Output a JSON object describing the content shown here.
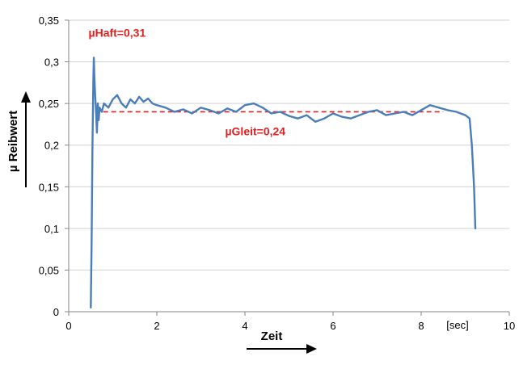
{
  "chart_data": {
    "type": "line",
    "title": "",
    "xlabel": "Zeit",
    "ylabel": "µ Reibwert",
    "x_unit_label": "[sec]",
    "xlim": [
      0,
      10
    ],
    "ylim": [
      0,
      0.35
    ],
    "x_ticks": [
      0,
      2,
      4,
      6,
      8,
      10
    ],
    "x_tick_labels": [
      "0",
      "2",
      "4",
      "6",
      "8",
      "10"
    ],
    "y_ticks": [
      0,
      0.05,
      0.1,
      0.15,
      0.2,
      0.25,
      0.3,
      0.35
    ],
    "y_tick_labels": [
      "0",
      "0,05",
      "0,1",
      "0,15",
      "0,2",
      "0,25",
      "0,3",
      "0,35"
    ],
    "grid": "horizontal",
    "legend": "none",
    "series": [
      {
        "color": "#4a7ebb",
        "points": [
          [
            0.5,
            0.005
          ],
          [
            0.52,
            0.08
          ],
          [
            0.54,
            0.2
          ],
          [
            0.56,
            0.28
          ],
          [
            0.57,
            0.305
          ],
          [
            0.58,
            0.285
          ],
          [
            0.6,
            0.26
          ],
          [
            0.62,
            0.24
          ],
          [
            0.64,
            0.215
          ],
          [
            0.66,
            0.25
          ],
          [
            0.68,
            0.23
          ],
          [
            0.7,
            0.245
          ],
          [
            0.75,
            0.24
          ],
          [
            0.8,
            0.25
          ],
          [
            0.9,
            0.245
          ],
          [
            1.0,
            0.255
          ],
          [
            1.1,
            0.26
          ],
          [
            1.2,
            0.25
          ],
          [
            1.3,
            0.245
          ],
          [
            1.4,
            0.255
          ],
          [
            1.5,
            0.25
          ],
          [
            1.6,
            0.258
          ],
          [
            1.7,
            0.252
          ],
          [
            1.8,
            0.256
          ],
          [
            1.9,
            0.25
          ],
          [
            2.0,
            0.248
          ],
          [
            2.2,
            0.245
          ],
          [
            2.4,
            0.24
          ],
          [
            2.6,
            0.243
          ],
          [
            2.8,
            0.238
          ],
          [
            3.0,
            0.245
          ],
          [
            3.2,
            0.242
          ],
          [
            3.4,
            0.238
          ],
          [
            3.6,
            0.244
          ],
          [
            3.8,
            0.24
          ],
          [
            4.0,
            0.248
          ],
          [
            4.2,
            0.25
          ],
          [
            4.4,
            0.245
          ],
          [
            4.6,
            0.238
          ],
          [
            4.8,
            0.24
          ],
          [
            5.0,
            0.235
          ],
          [
            5.2,
            0.232
          ],
          [
            5.4,
            0.236
          ],
          [
            5.6,
            0.228
          ],
          [
            5.8,
            0.232
          ],
          [
            6.0,
            0.238
          ],
          [
            6.2,
            0.234
          ],
          [
            6.4,
            0.232
          ],
          [
            6.6,
            0.236
          ],
          [
            6.8,
            0.24
          ],
          [
            7.0,
            0.242
          ],
          [
            7.2,
            0.236
          ],
          [
            7.4,
            0.238
          ],
          [
            7.6,
            0.24
          ],
          [
            7.8,
            0.236
          ],
          [
            8.0,
            0.242
          ],
          [
            8.2,
            0.248
          ],
          [
            8.4,
            0.245
          ],
          [
            8.6,
            0.242
          ],
          [
            8.8,
            0.24
          ],
          [
            9.0,
            0.236
          ],
          [
            9.1,
            0.232
          ],
          [
            9.15,
            0.2
          ],
          [
            9.2,
            0.15
          ],
          [
            9.23,
            0.1
          ]
        ]
      }
    ],
    "reference_line": {
      "y": 0.24,
      "x_start": 0.6,
      "x_end": 8.5,
      "color": "#e02020",
      "style": "dashed"
    },
    "annotations": [
      {
        "text": "µHaft=0,31",
        "x": 0.45,
        "y": 0.33,
        "color": "#e02020"
      },
      {
        "text": "µGleit=0,24",
        "x": 3.55,
        "y": 0.212,
        "color": "#e02020"
      }
    ]
  }
}
